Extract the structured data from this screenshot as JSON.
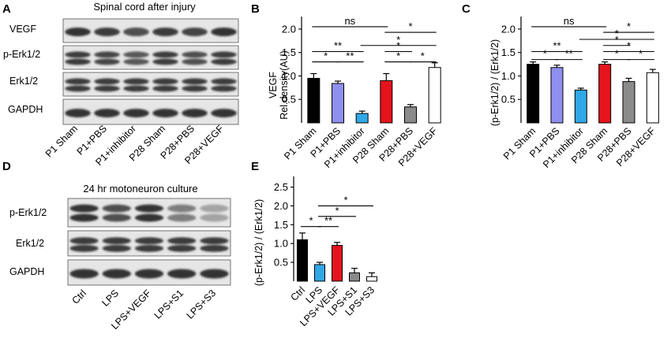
{
  "colors": {
    "black": "#000000",
    "blue_lavender": "#8f8ff0",
    "cyan": "#31a8e6",
    "red": "#e5131c",
    "gray": "#8a8a8a",
    "white": "#ffffff",
    "blot_bg": "#e6e6e6",
    "band": "#2a2a2a"
  },
  "panelA": {
    "letter": "A",
    "title": "Spinal cord after injury",
    "rows": [
      "VEGF",
      "p-Erk1/2",
      "Erk1/2",
      "GAPDH"
    ],
    "lanes": [
      "P1 Sham",
      "P1+PBS",
      "P1+inhibitor",
      "P28 Sham",
      "P28+PBS",
      "P28+VEGF"
    ]
  },
  "panelD": {
    "letter": "D",
    "title": "24 hr motoneuron culture",
    "rows": [
      "p-Erk1/2",
      "Erk1/2",
      "GAPDH"
    ],
    "lanes": [
      "Ctrl",
      "LPS",
      "LPS+VEGF",
      "LPS+S1",
      "LPS+S3"
    ]
  },
  "chart_data": [
    {
      "panel": "B",
      "type": "bar",
      "ylabel_line1": "VEGF",
      "ylabel_line2": "Rel.density(AU)",
      "yticks": [
        "0.5",
        "1.0",
        "1.5",
        "2.0"
      ],
      "ylim": [
        0,
        2.2
      ],
      "categories": [
        "P1 Sham",
        "P1+PBS",
        "P1+inhibitor",
        "P28 Sham",
        "P28+PBS",
        "P28+VEGF"
      ],
      "values": [
        0.95,
        0.84,
        0.2,
        0.9,
        0.34,
        1.18
      ],
      "errors": [
        0.1,
        0.05,
        0.05,
        0.15,
        0.05,
        0.1
      ],
      "bar_colors": [
        "#000000",
        "#8f8ff0",
        "#31a8e6",
        "#e5131c",
        "#8a8a8a",
        "#ffffff"
      ],
      "annotations": [
        {
          "from": 0,
          "to": 3,
          "text": "ns",
          "level": 2.05
        },
        {
          "from": 3,
          "to": 5,
          "text": "*",
          "level": 1.93
        },
        {
          "from": 2,
          "to": 5,
          "text": "*",
          "level": 1.65
        },
        {
          "from": 0,
          "to": 2,
          "text": "**",
          "level": 1.52
        },
        {
          "from": 3,
          "to": 4,
          "text": "*",
          "level": 1.52
        },
        {
          "from": 0,
          "to": 1,
          "text": "*",
          "level": 1.3
        },
        {
          "from": 1,
          "to": 2,
          "text": "**",
          "level": 1.3
        },
        {
          "from": 3,
          "to": 4,
          "text": "*",
          "level": 1.3
        },
        {
          "from": 4,
          "to": 5,
          "text": "*",
          "level": 1.3
        }
      ]
    },
    {
      "panel": "C",
      "type": "bar",
      "ylabel": "(p-Erk1/2) / (Erk1/2)",
      "yticks": [
        "0.5",
        "1.0",
        "1.5",
        "2.0"
      ],
      "ylim": [
        0,
        2.2
      ],
      "categories": [
        "P1 Sham",
        "P1+PBS",
        "P1+inhibitor",
        "P28 Sham",
        "P28+PBS",
        "P28+VEGF"
      ],
      "values": [
        1.25,
        1.18,
        0.7,
        1.25,
        0.88,
        1.07
      ],
      "errors": [
        0.05,
        0.05,
        0.04,
        0.05,
        0.07,
        0.07
      ],
      "bar_colors": [
        "#000000",
        "#8f8ff0",
        "#31a8e6",
        "#e5131c",
        "#8a8a8a",
        "#ffffff"
      ],
      "annotations": [
        {
          "from": 0,
          "to": 3,
          "text": "ns",
          "level": 2.05
        },
        {
          "from": 3,
          "to": 5,
          "text": "*",
          "level": 1.93
        },
        {
          "from": 2,
          "to": 5,
          "text": "*",
          "level": 1.78
        },
        {
          "from": 3,
          "to": 4,
          "text": "*",
          "level": 1.65
        },
        {
          "from": 0,
          "to": 2,
          "text": "**",
          "level": 1.52
        },
        {
          "from": 3,
          "to": 5,
          "text": "*",
          "level": 1.52
        },
        {
          "from": 0,
          "to": 1,
          "text": "*",
          "level": 1.35
        },
        {
          "from": 1,
          "to": 2,
          "text": "**",
          "level": 1.35
        },
        {
          "from": 3,
          "to": 4,
          "text": "*",
          "level": 1.35
        },
        {
          "from": 4,
          "to": 5,
          "text": "*",
          "level": 1.35
        }
      ]
    },
    {
      "panel": "E",
      "type": "bar",
      "ylabel": "(p-Erk1/2) / (Erk1/2)",
      "yticks": [
        "0.5",
        "1.0",
        "1.5",
        "2.0",
        "2.5"
      ],
      "ylim": [
        0,
        2.7
      ],
      "categories": [
        "Ctrl",
        "LPS",
        "LPS+VEGF",
        "LPS+S1",
        "LPS+S3"
      ],
      "values": [
        1.1,
        0.44,
        0.95,
        0.22,
        0.12
      ],
      "errors": [
        0.18,
        0.06,
        0.08,
        0.12,
        0.1
      ],
      "bar_colors": [
        "#000000",
        "#31a8e6",
        "#e5131c",
        "#8a8a8a",
        "#ffffff"
      ],
      "annotations": [
        {
          "from": 1,
          "to": 4,
          "text": "*",
          "level": 2.0
        },
        {
          "from": 1,
          "to": 3,
          "text": "*",
          "level": 1.72
        },
        {
          "from": 1,
          "to": 2,
          "text": "**",
          "level": 1.45
        },
        {
          "from": 0,
          "to": 1,
          "text": "*",
          "level": 1.45
        }
      ]
    }
  ]
}
